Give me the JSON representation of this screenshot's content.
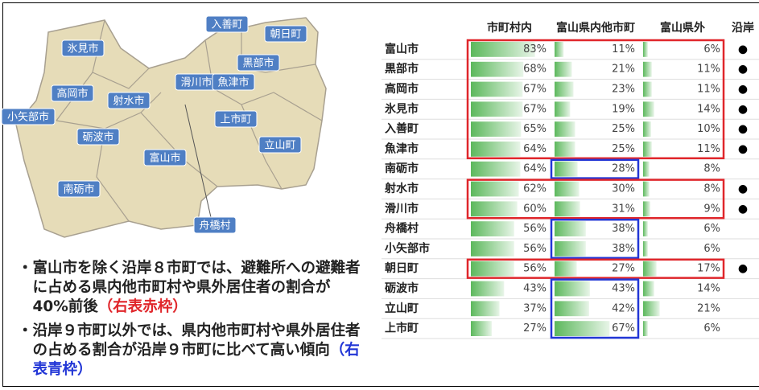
{
  "map": {
    "labels": [
      "入善町",
      "朝日町",
      "氷見市",
      "黒部市",
      "高岡市",
      "滑川市",
      "魚津市",
      "射水市",
      "小矢部市",
      "上市町",
      "砺波市",
      "立山町",
      "富山市",
      "南砺市",
      "舟橋村"
    ]
  },
  "bullets": [
    {
      "text": "・富山市を除く沿岸８市町では、避難所への避難者に占める県内他市町村や県外居住者の割合が40%前後",
      "note": "（右表赤枠）",
      "note_color": "#e0262b"
    },
    {
      "text": "・沿岸９市町以外では、県内他市町村や県外居住者の占める割合が沿岸９市町に比べて高い傾向",
      "note": "（右表青枠）",
      "note_color": "#2236d6"
    }
  ],
  "table": {
    "columns": [
      "市町村内",
      "富山県内他市町",
      "富山県外",
      "沿岸"
    ],
    "rows": [
      {
        "name": "富山市",
        "values": [
          83,
          11,
          6
        ],
        "value_labels": [
          "83%",
          "11%",
          "6%"
        ],
        "coastal": "●"
      },
      {
        "name": "黒部市",
        "values": [
          68,
          21,
          11
        ],
        "value_labels": [
          "68%",
          "21%",
          "11%"
        ],
        "coastal": "●"
      },
      {
        "name": "高岡市",
        "values": [
          67,
          23,
          11
        ],
        "value_labels": [
          "67%",
          "23%",
          "11%"
        ],
        "coastal": "●"
      },
      {
        "name": "氷見市",
        "values": [
          67,
          19,
          14
        ],
        "value_labels": [
          "67%",
          "19%",
          "14%"
        ],
        "coastal": "●"
      },
      {
        "name": "入善町",
        "values": [
          65,
          25,
          10
        ],
        "value_labels": [
          "65%",
          "25%",
          "10%"
        ],
        "coastal": "●"
      },
      {
        "name": "魚津市",
        "values": [
          64,
          25,
          11
        ],
        "value_labels": [
          "64%",
          "25%",
          "11%"
        ],
        "coastal": "●"
      },
      {
        "name": "南砺市",
        "values": [
          64,
          28,
          8
        ],
        "value_labels": [
          "64%",
          "28%",
          "8%"
        ]
      },
      {
        "name": "射水市",
        "values": [
          62,
          30,
          8
        ],
        "value_labels": [
          "62%",
          "30%",
          "8%"
        ],
        "coastal": "●"
      },
      {
        "name": "滑川市",
        "values": [
          60,
          31,
          9
        ],
        "value_labels": [
          "60%",
          "31%",
          "9%"
        ],
        "coastal": "●"
      },
      {
        "name": "舟橋村",
        "values": [
          56,
          38,
          6
        ],
        "value_labels": [
          "56%",
          "38%",
          "6%"
        ]
      },
      {
        "name": "小矢部市",
        "values": [
          56,
          38,
          6
        ],
        "value_labels": [
          "56%",
          "38%",
          "6%"
        ]
      },
      {
        "name": "朝日町",
        "values": [
          56,
          27,
          17
        ],
        "value_labels": [
          "56%",
          "27%",
          "17%"
        ],
        "coastal": "●"
      },
      {
        "name": "砺波市",
        "values": [
          43,
          43,
          14
        ],
        "value_labels": [
          "43%",
          "43%",
          "14%"
        ]
      },
      {
        "name": "立山町",
        "values": [
          37,
          42,
          21
        ],
        "value_labels": [
          "37%",
          "42%",
          "21%"
        ]
      },
      {
        "name": "上市町",
        "values": [
          27,
          67,
          6
        ],
        "value_labels": [
          "27%",
          "67%",
          "6%"
        ]
      }
    ]
  }
}
